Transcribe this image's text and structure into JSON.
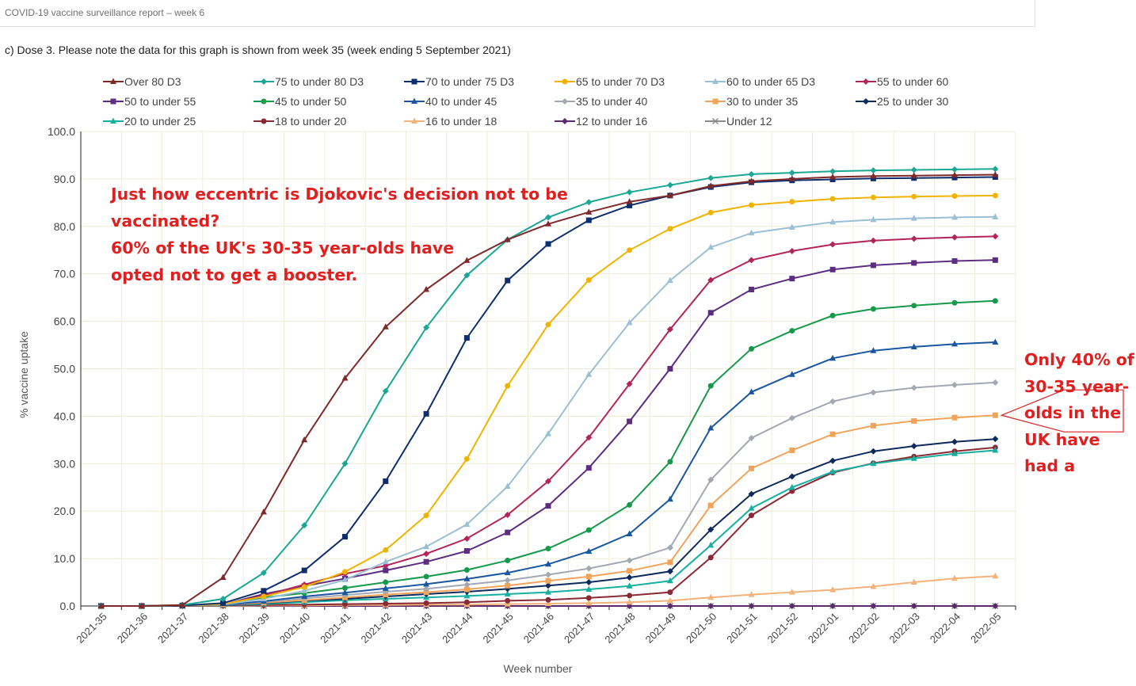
{
  "page": {
    "report_header": "COVID-19 vaccine surveillance report – week 6",
    "caption": "c) Dose 3. Please note the data for this graph is shown from week 35 (week ending 5 September 2021)"
  },
  "annotations": {
    "left_note": [
      "Just how eccentric is Djokovic's decision not to be",
      "vaccinated?",
      "60% of the UK's 30-35 year-olds have",
      "opted not to get a booster."
    ],
    "right_note": [
      "Only 40% of",
      "30-35 year-",
      "olds in the",
      "UK have",
      "had a"
    ],
    "color": "#e02020"
  },
  "chart_data": {
    "type": "line",
    "xlabel": "Week number",
    "ylabel": "% vaccine uptake",
    "ylim": [
      0,
      100
    ],
    "yticks": [
      "0.0",
      "10.0",
      "20.0",
      "30.0",
      "40.0",
      "50.0",
      "60.0",
      "70.0",
      "80.0",
      "90.0",
      "100.0"
    ],
    "grid": true,
    "legend_position": "top",
    "x": [
      "2021-35",
      "2021-36",
      "2021-37",
      "2021-38",
      "2021-39",
      "2021-40",
      "2021-41",
      "2021-42",
      "2021-43",
      "2021-44",
      "2021-45",
      "2021-46",
      "2021-47",
      "2021-48",
      "2021-49",
      "2021-50",
      "2021-51",
      "2021-52",
      "2022-01",
      "2022-02",
      "2022-03",
      "2022-04",
      "2022-05"
    ],
    "series": [
      {
        "name": "Over 80 D3",
        "color": "#7f2a2a",
        "marker": "triangle",
        "values": [
          0,
          0,
          0.2,
          6.0,
          19.8,
          35.0,
          48.0,
          58.8,
          66.7,
          72.8,
          77.2,
          80.5,
          83.0,
          85.2,
          86.5,
          88.5,
          89.5,
          90.0,
          90.4,
          90.6,
          90.7,
          90.8,
          90.9
        ]
      },
      {
        "name": "75 to under 80 D3",
        "color": "#1aa894",
        "marker": "diamond",
        "values": [
          0,
          0,
          0.2,
          1.5,
          7.0,
          17.0,
          30.0,
          45.3,
          58.7,
          69.7,
          77.2,
          81.9,
          85.1,
          87.2,
          88.7,
          90.2,
          91.0,
          91.3,
          91.6,
          91.8,
          91.9,
          92.0,
          92.1
        ]
      },
      {
        "name": "70 to under 75 D3",
        "color": "#0d2f6e",
        "marker": "square",
        "values": [
          0,
          0,
          0.1,
          0.6,
          3.2,
          7.5,
          14.6,
          26.3,
          40.5,
          56.5,
          68.6,
          76.3,
          81.3,
          84.4,
          86.5,
          88.3,
          89.3,
          89.7,
          89.9,
          90.1,
          90.2,
          90.3,
          90.4
        ]
      },
      {
        "name": "65 to under 70 D3",
        "color": "#f0b400",
        "marker": "circle",
        "values": [
          0,
          0,
          0.1,
          0.4,
          2.0,
          4.0,
          7.2,
          11.8,
          19.1,
          31.0,
          46.4,
          59.3,
          68.7,
          75.0,
          79.5,
          82.9,
          84.5,
          85.2,
          85.8,
          86.1,
          86.3,
          86.4,
          86.5
        ]
      },
      {
        "name": "60 to under 65 D3",
        "color": "#9bbfd4",
        "marker": "triangle",
        "values": [
          0,
          0,
          0.1,
          0.3,
          1.5,
          3.2,
          5.5,
          9.3,
          12.5,
          17.2,
          25.2,
          36.3,
          48.8,
          59.7,
          68.6,
          75.6,
          78.6,
          79.8,
          80.9,
          81.4,
          81.7,
          81.9,
          82.0
        ]
      },
      {
        "name": "55 to under 60",
        "color": "#b3245a",
        "marker": "diamond",
        "values": [
          0,
          0,
          0.1,
          0.3,
          2.2,
          4.5,
          6.8,
          8.5,
          11.0,
          14.2,
          19.2,
          26.3,
          35.5,
          46.8,
          58.3,
          68.7,
          72.9,
          74.8,
          76.2,
          77.0,
          77.4,
          77.7,
          77.9
        ]
      },
      {
        "name": "50 to under 55",
        "color": "#5c2d80",
        "marker": "square",
        "values": [
          0,
          0,
          0.1,
          0.3,
          2.5,
          4.2,
          5.8,
          7.5,
          9.3,
          11.6,
          15.5,
          21.1,
          29.1,
          38.9,
          50.0,
          61.8,
          66.7,
          69.0,
          70.9,
          71.8,
          72.3,
          72.7,
          72.9
        ]
      },
      {
        "name": "45 to under 50",
        "color": "#17994b",
        "marker": "circle",
        "values": [
          0,
          0,
          0.1,
          0.2,
          1.8,
          2.7,
          3.8,
          5.0,
          6.2,
          7.6,
          9.6,
          12.1,
          16.0,
          21.3,
          30.4,
          46.4,
          54.2,
          58.0,
          61.2,
          62.6,
          63.3,
          63.9,
          64.3
        ]
      },
      {
        "name": "40 to under 45",
        "color": "#1a57a0",
        "marker": "triangle",
        "values": [
          0,
          0,
          0.1,
          0.2,
          1.0,
          2.0,
          2.8,
          3.7,
          4.6,
          5.7,
          7.0,
          8.8,
          11.5,
          15.2,
          22.5,
          37.5,
          45.1,
          48.8,
          52.2,
          53.8,
          54.6,
          55.2,
          55.6
        ]
      },
      {
        "name": "35 to under 40",
        "color": "#a3a8b3",
        "marker": "diamond",
        "values": [
          0,
          0,
          0.1,
          0.2,
          0.9,
          1.6,
          2.3,
          3.0,
          3.6,
          4.5,
          5.4,
          6.6,
          7.9,
          9.6,
          12.3,
          26.6,
          35.4,
          39.6,
          43.1,
          45.0,
          46.0,
          46.6,
          47.1
        ]
      },
      {
        "name": "30 to under 35",
        "color": "#f0a35a",
        "marker": "square",
        "values": [
          0,
          0,
          0.1,
          0.2,
          0.7,
          1.2,
          1.8,
          2.4,
          2.9,
          3.5,
          4.3,
          5.3,
          6.2,
          7.4,
          9.2,
          21.2,
          29.0,
          32.8,
          36.2,
          38.0,
          39.0,
          39.7,
          40.2
        ]
      },
      {
        "name": "25 to under 30",
        "color": "#0d2a5c",
        "marker": "diamond",
        "values": [
          0,
          0,
          0.1,
          0.1,
          0.6,
          1.1,
          1.5,
          2.0,
          2.5,
          3.0,
          3.6,
          4.3,
          5.0,
          6.0,
          7.3,
          16.1,
          23.6,
          27.3,
          30.6,
          32.6,
          33.7,
          34.6,
          35.2
        ]
      },
      {
        "name": "20 to under 25",
        "color": "#17b0a0",
        "marker": "triangle",
        "values": [
          0,
          0,
          0.1,
          0.1,
          0.4,
          0.8,
          1.2,
          1.5,
          1.8,
          2.1,
          2.5,
          2.9,
          3.5,
          4.2,
          5.3,
          12.8,
          20.6,
          25.0,
          28.3,
          30.0,
          31.1,
          32.1,
          32.8
        ]
      },
      {
        "name": "18 to under 20",
        "color": "#8a2a36",
        "marker": "circle",
        "values": [
          0,
          0,
          0,
          0.1,
          0.2,
          0.3,
          0.4,
          0.5,
          0.6,
          0.8,
          1.1,
          1.3,
          1.7,
          2.2,
          2.9,
          10.2,
          19.1,
          24.2,
          28.1,
          30.1,
          31.5,
          32.6,
          33.4
        ]
      },
      {
        "name": "16 to under 18",
        "color": "#f2b27a",
        "marker": "triangle",
        "values": [
          0,
          0,
          0,
          0,
          0.1,
          0.1,
          0.2,
          0.2,
          0.3,
          0.3,
          0.4,
          0.5,
          0.6,
          0.8,
          1.1,
          1.8,
          2.4,
          2.9,
          3.4,
          4.1,
          5.0,
          5.8,
          6.3
        ]
      },
      {
        "name": "12 to under 16",
        "color": "#5a2a6a",
        "marker": "diamond",
        "values": [
          0,
          0,
          0,
          0,
          0,
          0,
          0,
          0,
          0,
          0,
          0,
          0,
          0,
          0,
          0,
          0,
          0,
          0,
          0,
          0,
          0,
          0,
          0
        ]
      },
      {
        "name": "Under 12",
        "color": "#8c8c8c",
        "marker": "cross",
        "values": [
          0,
          0,
          0,
          0,
          0,
          0,
          0,
          0,
          0,
          0,
          0,
          0,
          0,
          0,
          0,
          0,
          0,
          0,
          0,
          0,
          0,
          0,
          0
        ]
      }
    ]
  }
}
